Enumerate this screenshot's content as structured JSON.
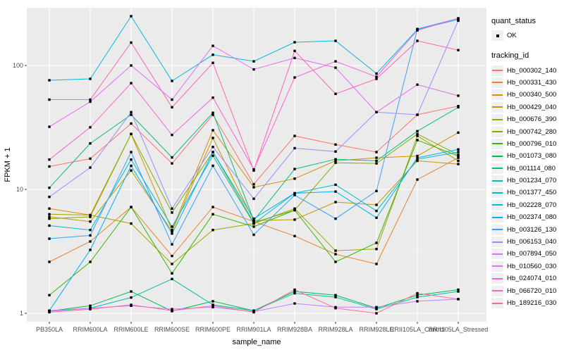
{
  "chart_data": {
    "type": "line",
    "title": "",
    "xlabel": "sample_name",
    "ylabel": "FPKM + 1",
    "y_scale": "log10",
    "y_ticks": [
      "1",
      "10",
      "100"
    ],
    "ylim": [
      0.85,
      300
    ],
    "grid": "on",
    "panel_bg": "#EBEBEB",
    "grid_color": "#FFFFFF",
    "point_color": "#000000",
    "legend_position": "right",
    "categories": [
      "PB350LA",
      "RRIM600LA",
      "RRIM600LE",
      "RRIM600SE",
      "RRIM600PE",
      "RRIM901LA",
      "RRIM928BA",
      "RRIM928LA",
      "RRIM928LE",
      "RRII105LA_Control",
      "RRII105LA_Stressed"
    ],
    "series": [
      {
        "name": "Hb_000302_140",
        "color": "#F8766D",
        "values": [
          15.3,
          17.7,
          34,
          16.2,
          40,
          11,
          27,
          23,
          20,
          40,
          47
        ]
      },
      {
        "name": "Hb_000331_430",
        "color": "#EA8331",
        "values": [
          2.6,
          3.8,
          7.2,
          2.9,
          7.2,
          5.5,
          4.2,
          3.0,
          2.5,
          12,
          18
        ]
      },
      {
        "name": "Hb_000340_500",
        "color": "#D89000",
        "values": [
          7.0,
          6.2,
          28,
          4.7,
          30,
          10.4,
          12.2,
          17,
          18,
          18.6,
          28.7
        ]
      },
      {
        "name": "Hb_000429_040",
        "color": "#C09B00",
        "values": [
          6.0,
          5.5,
          14.2,
          4.6,
          26,
          5.6,
          5.7,
          7.9,
          7.5,
          17,
          16
        ]
      },
      {
        "name": "Hb_000676_390",
        "color": "#A3A500",
        "values": [
          6.3,
          6.2,
          5.3,
          2.5,
          4.7,
          5.3,
          7.0,
          3.2,
          3.3,
          27,
          17
        ]
      },
      {
        "name": "Hb_000742_280",
        "color": "#7CAE00",
        "values": [
          5.8,
          6.0,
          28,
          6.5,
          20,
          5.4,
          6.8,
          16.4,
          16.2,
          28,
          19
        ]
      },
      {
        "name": "Hb_000796_010",
        "color": "#39B600",
        "values": [
          1.4,
          2.6,
          7.2,
          2.1,
          6.3,
          5.0,
          6.8,
          2.6,
          3.7,
          25,
          18.6
        ]
      },
      {
        "name": "Hb_001073_080",
        "color": "#00BB4E",
        "values": [
          1.04,
          1.15,
          1.5,
          1.04,
          1.25,
          1.05,
          1.5,
          1.4,
          1.1,
          1.4,
          1.55
        ]
      },
      {
        "name": "Hb_001114_080",
        "color": "#00BF7D",
        "values": [
          10.3,
          23.5,
          40,
          18.1,
          41.5,
          5.6,
          14.6,
          17.5,
          17,
          29.5,
          46
        ]
      },
      {
        "name": "Hb_001234_070",
        "color": "#00C1A7",
        "values": [
          1.04,
          1.1,
          1.34,
          1.89,
          1.17,
          1.05,
          1.45,
          1.35,
          1.08,
          1.35,
          1.5
        ]
      },
      {
        "name": "Hb_001377_450",
        "color": "#00BFC4",
        "values": [
          5.1,
          4.7,
          17.4,
          5.0,
          18.7,
          5.3,
          9.3,
          10.9,
          6.7,
          17.5,
          20
        ]
      },
      {
        "name": "Hb_002228_070",
        "color": "#00BADE",
        "values": [
          76,
          78,
          250,
          75,
          122,
          108,
          154,
          158,
          86,
          195,
          235
        ]
      },
      {
        "name": "Hb_002374_080",
        "color": "#00B0F6",
        "values": [
          1.05,
          3.25,
          15.5,
          4.4,
          20,
          5.8,
          9.3,
          9.6,
          5.9,
          18,
          21
        ]
      },
      {
        "name": "Hb_003126_130",
        "color": "#35A2FF",
        "values": [
          4.0,
          4.25,
          20,
          3.6,
          15.5,
          4.3,
          9.0,
          5.8,
          9.7,
          197,
          240
        ]
      },
      {
        "name": "Hb_006153_040",
        "color": "#9590FF",
        "values": [
          8.7,
          15,
          42,
          7.0,
          22,
          8.4,
          21.5,
          20.2,
          42,
          40,
          230
        ]
      },
      {
        "name": "Hb_007894_050",
        "color": "#C77CFF",
        "values": [
          1.05,
          1.1,
          1.15,
          1.08,
          1.12,
          1.03,
          1.2,
          1.12,
          1.12,
          1.25,
          1.3
        ]
      },
      {
        "name": "Hb_010560_030",
        "color": "#E76BF3",
        "values": [
          32,
          51,
          100,
          53,
          144,
          93,
          115,
          96,
          42,
          70,
          57
        ]
      },
      {
        "name": "Hb_024074_010",
        "color": "#FA62DB",
        "values": [
          17.4,
          31.7,
          72,
          27.5,
          55,
          14.5,
          80,
          108,
          81,
          192,
          240
        ]
      },
      {
        "name": "Hb_066720_010",
        "color": "#FF62BC",
        "values": [
          53,
          53,
          153,
          46,
          105,
          14.2,
          131,
          59,
          78,
          158,
          133
        ]
      },
      {
        "name": "Hb_189216_030",
        "color": "#FF6A98",
        "values": [
          1.02,
          1.08,
          1.17,
          1.05,
          1.15,
          1.02,
          1.55,
          1.1,
          1.0,
          1.45,
          1.3
        ]
      }
    ],
    "legend": {
      "quant_status_title": "quant_status",
      "quant_status_items": [
        "OK"
      ],
      "tracking_title": "tracking_id"
    }
  }
}
